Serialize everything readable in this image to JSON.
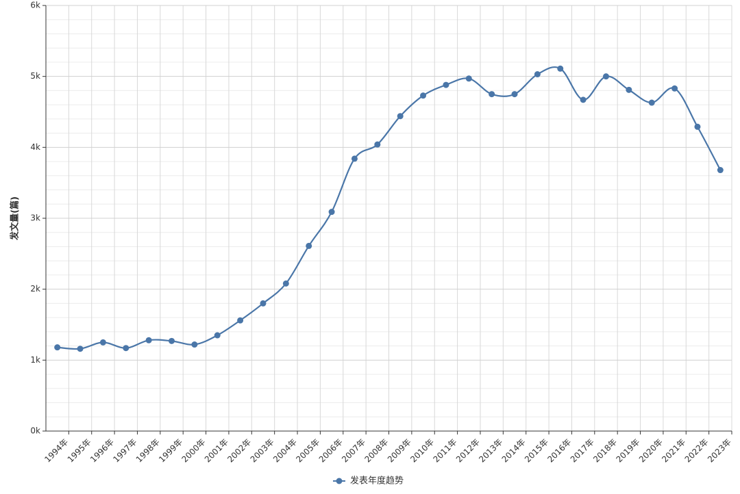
{
  "chart_data": {
    "type": "line",
    "y_label": "发文量(篇)",
    "categories": [
      "1994年",
      "1995年",
      "1996年",
      "1997年",
      "1998年",
      "1999年",
      "2000年",
      "2001年",
      "2002年",
      "2003年",
      "2004年",
      "2005年",
      "2006年",
      "2007年",
      "2008年",
      "2009年",
      "2010年",
      "2011年",
      "2012年",
      "2013年",
      "2014年",
      "2015年",
      "2016年",
      "2017年",
      "2018年",
      "2019年",
      "2020年",
      "2021年",
      "2022年",
      "2023年"
    ],
    "series": [
      {
        "name": "发表年度趋势",
        "color": "#4a76a8",
        "values": [
          1180,
          1160,
          1250,
          1170,
          1280,
          1270,
          1220,
          1350,
          1560,
          1800,
          2080,
          2610,
          3090,
          3840,
          4040,
          4440,
          4730,
          4880,
          4970,
          4750,
          4750,
          5030,
          5110,
          4670,
          5000,
          4810,
          4630,
          4830,
          4290,
          3680
        ]
      }
    ],
    "ylim": [
      0,
      6000
    ],
    "yticks": [
      {
        "value": 0,
        "label": "0k"
      },
      {
        "value": 1000,
        "label": "1k"
      },
      {
        "value": 2000,
        "label": "2k"
      },
      {
        "value": 3000,
        "label": "3k"
      },
      {
        "value": 4000,
        "label": "4k"
      },
      {
        "value": 5000,
        "label": "5k"
      },
      {
        "value": 6000,
        "label": "6k"
      }
    ],
    "grid": true,
    "smooth": true,
    "legend": "bottom"
  }
}
